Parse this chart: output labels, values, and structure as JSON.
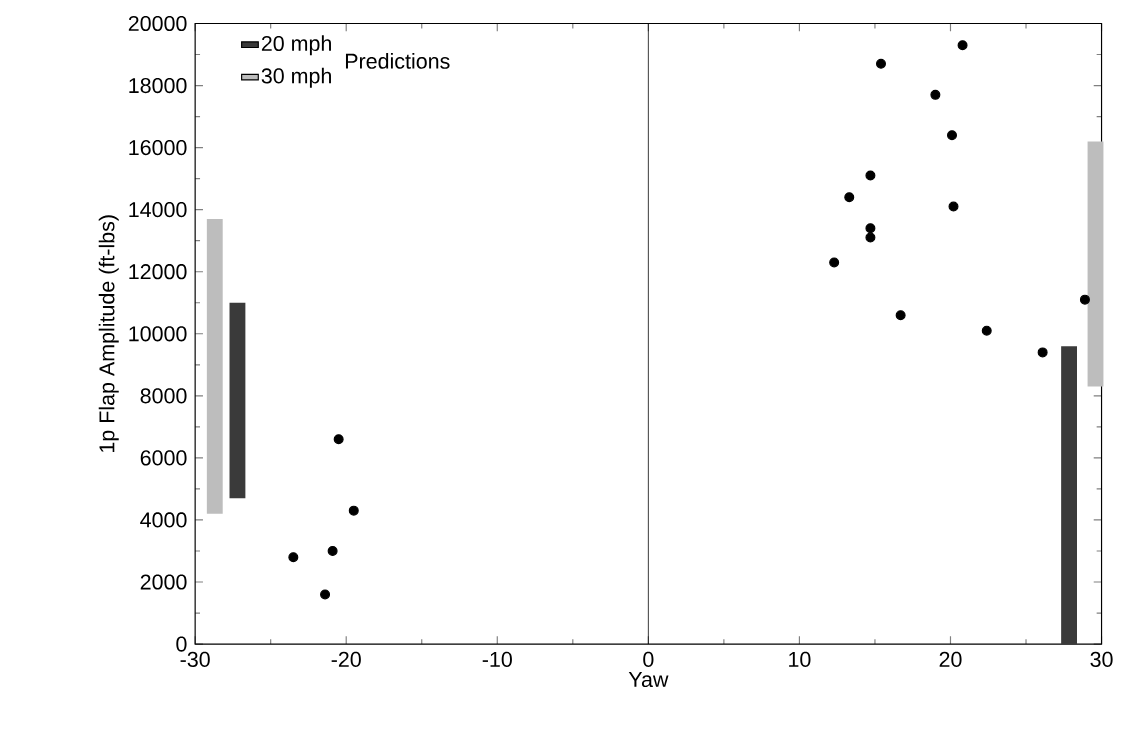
{
  "chart_data": {
    "type": "scatter",
    "xlabel": "Yaw",
    "ylabel": "1p Flap Amplitude (ft-lbs)",
    "legend_title": "Predictions",
    "legend": "top left",
    "marker": "circle",
    "xlim": [
      -30,
      30
    ],
    "xticks": [
      -30,
      -20,
      -10,
      0,
      10,
      20,
      30
    ],
    "ylim": [
      0,
      20000
    ],
    "yticks": [
      0,
      2000,
      4000,
      6000,
      8000,
      10000,
      12000,
      14000,
      16000,
      18000,
      20000
    ],
    "ref_lines": [
      {
        "axis": "x",
        "value": 0,
        "color": "#000000"
      }
    ],
    "series": [
      {
        "name": "20 mph",
        "type": "bar",
        "color": "#3a3a3a",
        "x": [
          -27.2,
          27.85
        ],
        "base": [
          4700,
          0
        ],
        "values": [
          6300,
          9600
        ]
      },
      {
        "name": "30 mph",
        "type": "bar",
        "color": "#bdbdbd",
        "x": [
          -28.7,
          29.6
        ],
        "base": [
          4200,
          8300
        ],
        "values": [
          9500,
          7900
        ]
      },
      {
        "color": "#000000",
        "x": [
          -20.5,
          -19.5,
          -23.5,
          -20.9,
          -21.4,
          20.8,
          15.4,
          19.0,
          20.1,
          14.7,
          13.3,
          20.2,
          14.7,
          14.7,
          12.3,
          16.7,
          22.4,
          26.1,
          28.9
        ],
        "values": [
          6600,
          4300,
          2800,
          3000,
          1600,
          19300,
          18700,
          17700,
          16400,
          15100,
          14400,
          14100,
          13400,
          13100,
          12300,
          10600,
          10100,
          9400,
          11100
        ]
      }
    ]
  }
}
